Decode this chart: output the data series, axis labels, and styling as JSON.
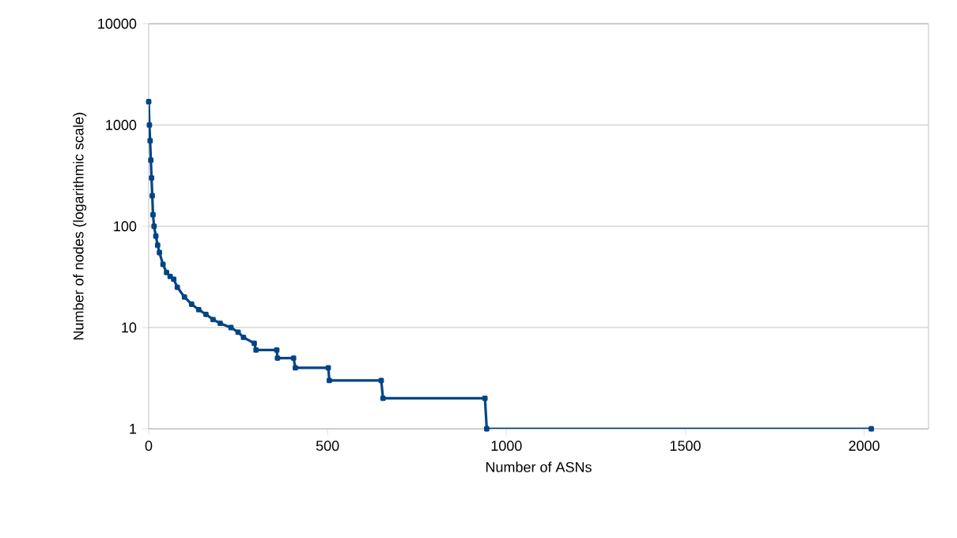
{
  "chart_data": {
    "type": "line",
    "xlabel": "Number of ASNs",
    "ylabel": "Number of nodes (logarithmic scale)",
    "xlim": [
      0,
      2180
    ],
    "xticks": [
      0,
      500,
      1000,
      1500,
      2000
    ],
    "ylim": [
      1,
      10000
    ],
    "yticks": [
      1,
      10,
      100,
      1000,
      10000
    ],
    "log": "y",
    "grid": "y",
    "marker": "square",
    "series": [
      {
        "color": "#004586",
        "x": [
          0,
          2,
          4,
          6,
          8,
          10,
          12,
          15,
          20,
          25,
          30,
          40,
          50,
          60,
          70,
          80,
          100,
          120,
          140,
          160,
          180,
          200,
          230,
          250,
          265,
          295,
          300,
          358,
          360,
          405,
          410,
          502,
          505,
          650,
          655,
          940,
          945,
          2020
        ],
        "values": [
          1700,
          1000,
          700,
          450,
          300,
          200,
          130,
          100,
          80,
          65,
          55,
          42,
          35,
          32,
          30,
          25,
          20,
          17,
          15,
          13.5,
          12,
          11,
          10,
          9,
          8,
          7,
          6,
          6,
          5,
          5,
          4,
          4,
          3,
          3,
          2,
          2,
          1,
          1
        ]
      }
    ]
  }
}
